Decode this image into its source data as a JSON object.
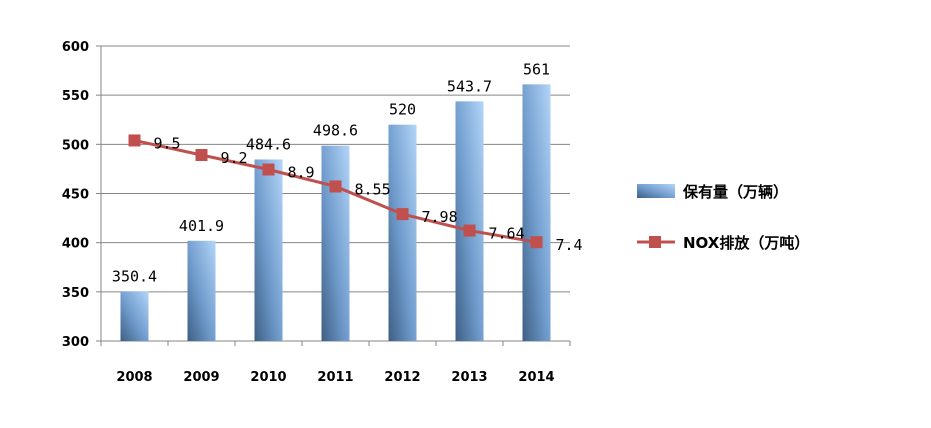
{
  "chart_data": {
    "type": "bar",
    "categories": [
      "2008",
      "2009",
      "2010",
      "2011",
      "2012",
      "2013",
      "2014"
    ],
    "ylim": [
      300,
      600
    ],
    "yticks": [
      "300",
      "350",
      "400",
      "450",
      "500",
      "550",
      "600"
    ],
    "grid": "horizontal",
    "legend_position": "right",
    "series": [
      {
        "name": "保有量（万辆）",
        "type": "bar",
        "values": [
          350.4,
          401.9,
          484.6,
          498.6,
          520,
          543.7,
          561
        ],
        "labels": [
          "350.4",
          "401.9",
          "484.6",
          "498.6",
          "520",
          "543.7",
          "561"
        ],
        "color": "#8fb9e6"
      },
      {
        "name": "NOX排放（万吨）",
        "type": "line",
        "values": [
          9.5,
          9.2,
          8.9,
          8.55,
          7.98,
          7.64,
          7.4
        ],
        "labels": [
          "9.5",
          "9.2",
          "8.9",
          "8.55",
          "7.98",
          "7.64",
          "7.4"
        ],
        "color": "#c0504d"
      }
    ]
  }
}
